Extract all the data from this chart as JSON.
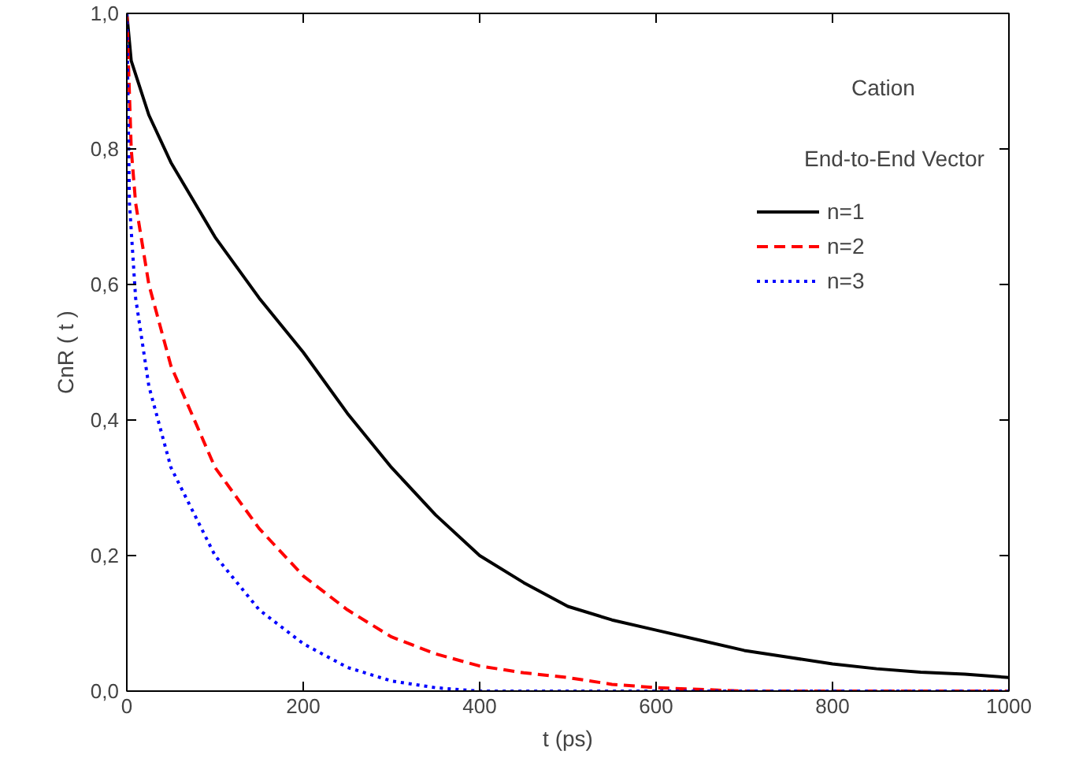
{
  "chart_data": {
    "type": "line",
    "xlabel": "t (ps)",
    "ylabel": "CnR ( t )",
    "annotations": [
      "Cation",
      "End-to-End Vector"
    ],
    "xlim": [
      0,
      1000
    ],
    "ylim": [
      0,
      1.0
    ],
    "xticks": [
      0,
      200,
      400,
      600,
      800,
      1000
    ],
    "yticks": [
      {
        "value": 0,
        "label": "0,0"
      },
      {
        "value": 0.2,
        "label": "0,2"
      },
      {
        "value": 0.4,
        "label": "0,4"
      },
      {
        "value": 0.6,
        "label": "0,6"
      },
      {
        "value": 0.8,
        "label": "0,8"
      },
      {
        "value": 1.0,
        "label": "1,0"
      }
    ],
    "grid": false,
    "legend": "top right",
    "marker": "none",
    "series": [
      {
        "name": "n=1",
        "color": "#000000",
        "line_style": "solid",
        "x": [
          0,
          5,
          25,
          50,
          100,
          150,
          200,
          250,
          300,
          350,
          400,
          450,
          500,
          550,
          600,
          650,
          700,
          750,
          800,
          850,
          900,
          950,
          1000
        ],
        "values": [
          1.0,
          0.93,
          0.85,
          0.78,
          0.67,
          0.58,
          0.5,
          0.41,
          0.33,
          0.26,
          0.2,
          0.16,
          0.125,
          0.105,
          0.09,
          0.075,
          0.06,
          0.05,
          0.04,
          0.033,
          0.028,
          0.025,
          0.02
        ]
      },
      {
        "name": "n=2",
        "color": "#ff0000",
        "line_style": "dashed",
        "x": [
          0,
          5,
          10,
          25,
          50,
          100,
          150,
          200,
          250,
          300,
          350,
          400,
          450,
          500,
          550,
          600,
          700,
          800,
          1000
        ],
        "values": [
          1.0,
          0.8,
          0.72,
          0.6,
          0.48,
          0.33,
          0.24,
          0.17,
          0.12,
          0.08,
          0.055,
          0.037,
          0.027,
          0.02,
          0.01,
          0.005,
          0.0,
          0.0,
          0.0
        ]
      },
      {
        "name": "n=3",
        "color": "#0000ff",
        "line_style": "dotted",
        "x": [
          0,
          3,
          10,
          25,
          50,
          100,
          150,
          200,
          250,
          300,
          350,
          400,
          1000
        ],
        "values": [
          1.0,
          0.72,
          0.58,
          0.45,
          0.33,
          0.2,
          0.12,
          0.07,
          0.035,
          0.015,
          0.005,
          0.0,
          0.0
        ]
      }
    ]
  }
}
